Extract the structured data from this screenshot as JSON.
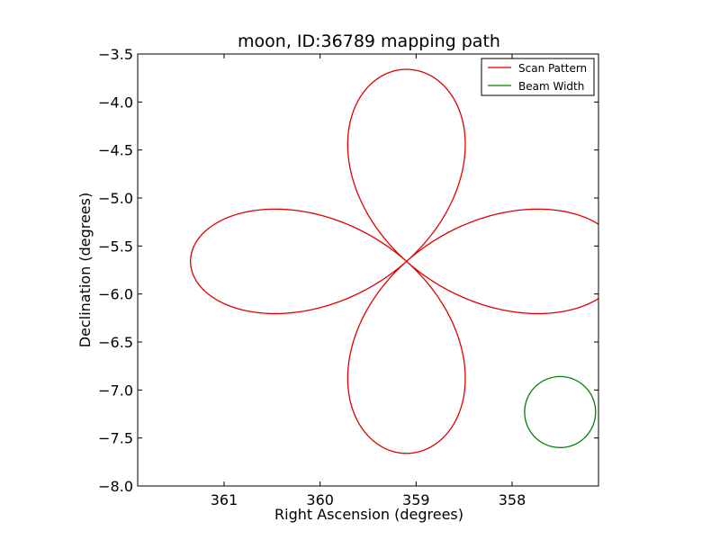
{
  "chart_data": {
    "type": "line",
    "title": "moon, ID:36789 mapping path",
    "xlabel": "Right Ascension (degrees)",
    "ylabel": "Declination (degrees)",
    "xlim": [
      361.9,
      357.1
    ],
    "ylim": [
      -8.0,
      -3.5
    ],
    "x_ticks": [
      361,
      360,
      359,
      358
    ],
    "x_tick_labels": [
      "361",
      "360",
      "359",
      "358"
    ],
    "y_ticks": [
      -3.5,
      -4.0,
      -4.5,
      -5.0,
      -5.5,
      -6.0,
      -6.5,
      -7.0,
      -7.5,
      -8.0
    ],
    "y_tick_labels": [
      "−3.5",
      "−4.0",
      "−4.5",
      "−5.0",
      "−5.5",
      "−6.0",
      "−6.5",
      "−7.0",
      "−7.5",
      "−8.0"
    ],
    "grid": false,
    "legend_position": "top-right",
    "series": [
      {
        "name": "Scan Pattern",
        "color": "#e00000",
        "shape": "four-petal rose",
        "center_x": 359.1,
        "center_y": -5.66,
        "extent_x": 2.25,
        "extent_y": 2.0,
        "start_x": 361.2,
        "start_y": -5.66
      },
      {
        "name": "Beam Width",
        "color": "#008000",
        "shape": "circle",
        "center_x": 357.5,
        "center_y": -7.23,
        "radius_x": 0.37,
        "radius_y": 0.37
      }
    ]
  }
}
